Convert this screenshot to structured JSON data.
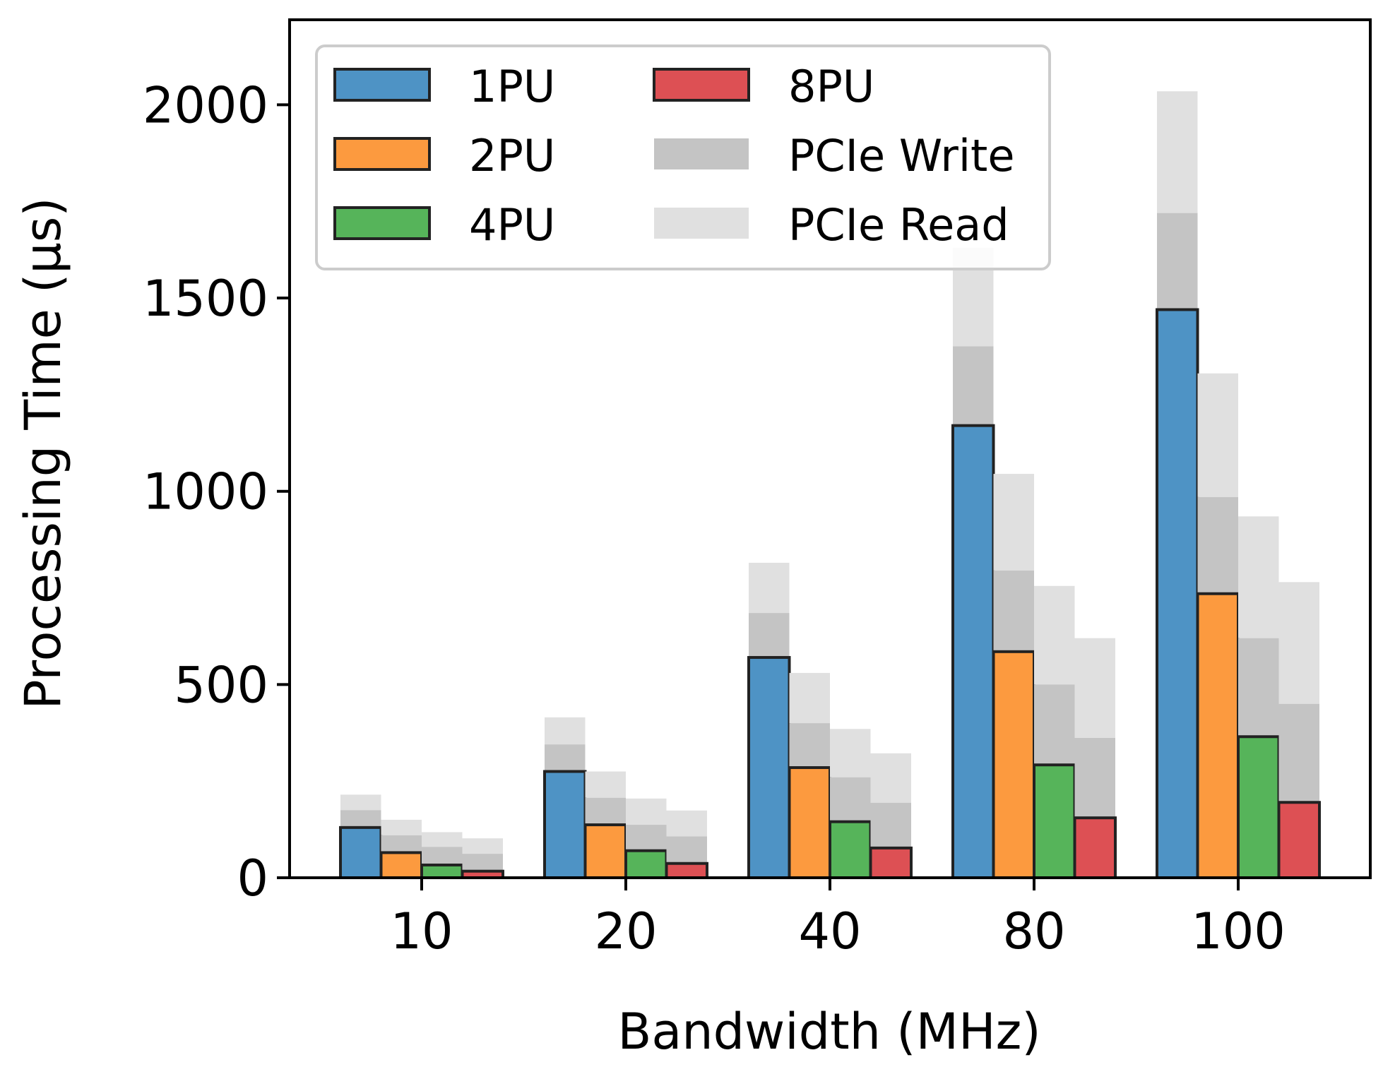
{
  "chart_data": {
    "type": "bar",
    "title": "",
    "xlabel": "Bandwidth (MHz)",
    "ylabel": "Processing Time (µs)",
    "categories": [
      "10",
      "20",
      "40",
      "80",
      "100"
    ],
    "ylim": [
      0,
      2220
    ],
    "yticks": [
      0,
      500,
      1000,
      1500,
      2000
    ],
    "ytick_labels": [
      "0",
      "500",
      "1000",
      "1500",
      "2000"
    ],
    "grid": false,
    "legend_position": "top-left",
    "series": [
      {
        "name": "1PU",
        "color": "#4e93c5",
        "processing": [
          130,
          275,
          570,
          1170,
          1470
        ],
        "pcie_write": [
          45,
          70,
          115,
          205,
          250
        ],
        "pcie_read": [
          40,
          70,
          130,
          255,
          315
        ]
      },
      {
        "name": "2PU",
        "color": "#fc9a3f",
        "processing": [
          65,
          137,
          285,
          585,
          735
        ],
        "pcie_write": [
          45,
          70,
          115,
          210,
          250
        ],
        "pcie_read": [
          40,
          68,
          130,
          250,
          320
        ]
      },
      {
        "name": "4PU",
        "color": "#56b45a",
        "processing": [
          33,
          70,
          145,
          292,
          365
        ],
        "pcie_write": [
          47,
          67,
          115,
          208,
          255
        ],
        "pcie_read": [
          38,
          68,
          125,
          255,
          315
        ]
      },
      {
        "name": "8PU",
        "color": "#dd5054",
        "processing": [
          17,
          37,
          77,
          155,
          195
        ],
        "pcie_write": [
          45,
          70,
          117,
          207,
          255
        ],
        "pcie_read": [
          40,
          67,
          128,
          258,
          315
        ]
      }
    ],
    "overlays": [
      {
        "name": "PCIe Write",
        "color": "#c4c4c4"
      },
      {
        "name": "PCIe Read",
        "color": "#e0e0e0"
      }
    ]
  }
}
